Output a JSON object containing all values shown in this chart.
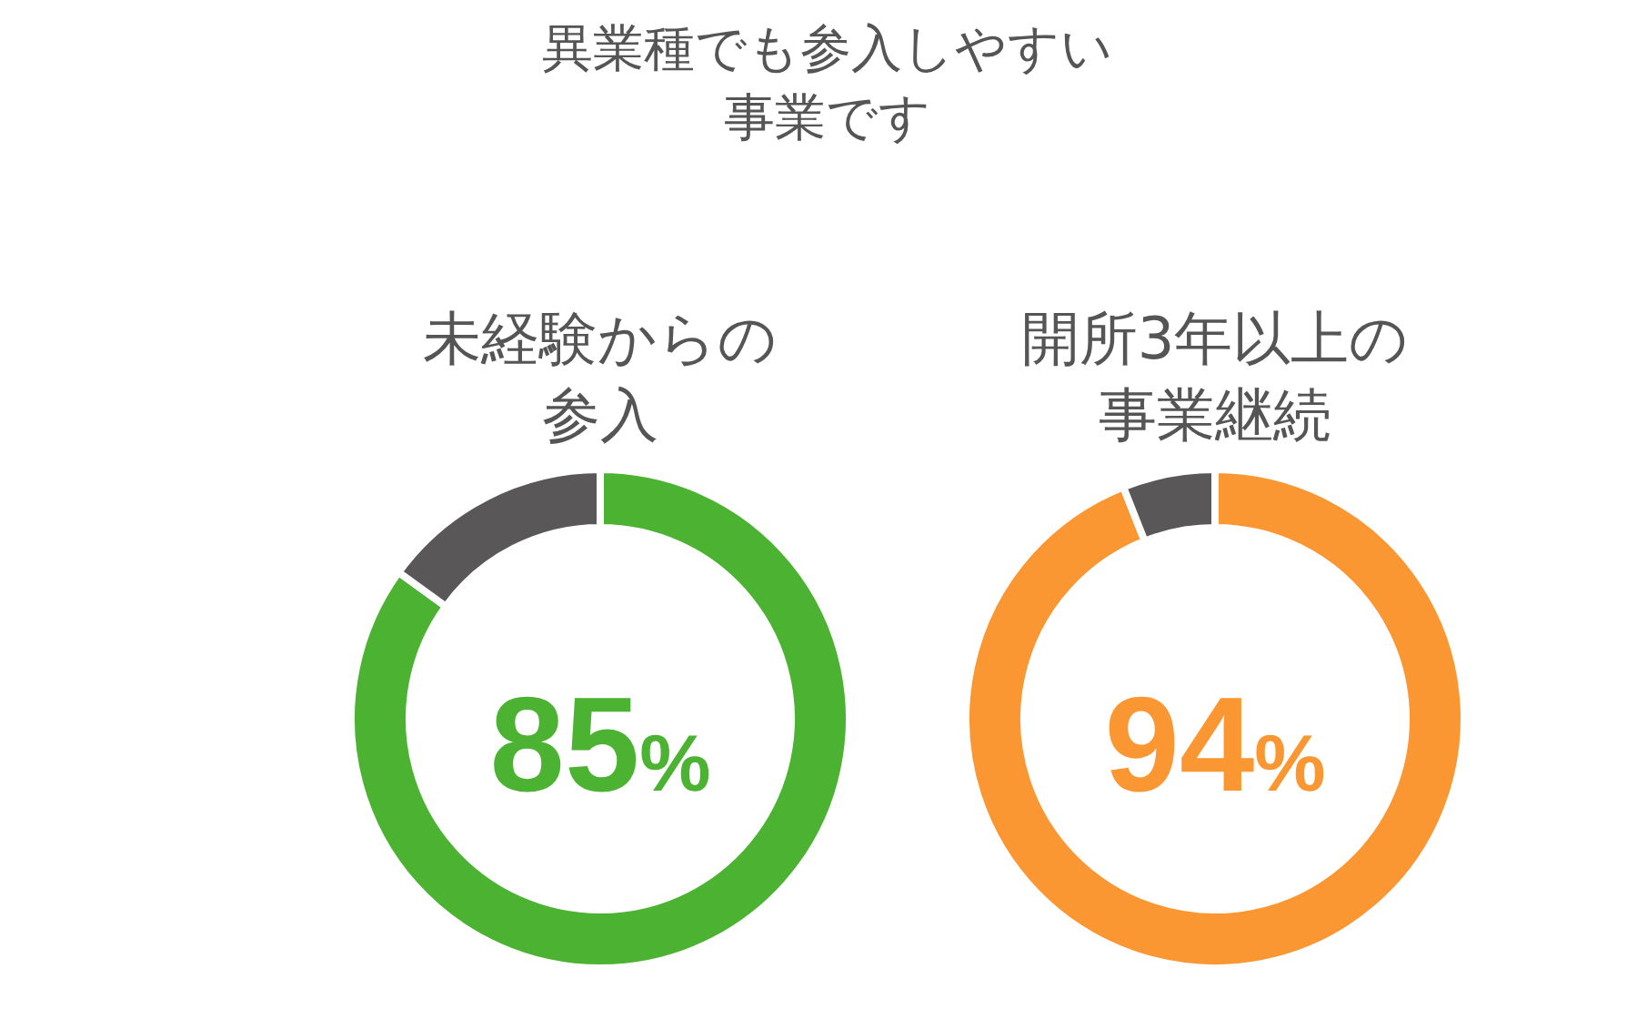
{
  "chart_data": [
    {
      "type": "donut",
      "title": "未経験からの参入",
      "annotations": [
        "異業種でも参入しやすい事業です"
      ],
      "categories": [
        null,
        null
      ],
      "values": [
        85,
        15
      ],
      "colors": [
        "#4cb232",
        "#595757"
      ],
      "value_labels": [
        "85%",
        null
      ]
    },
    {
      "type": "donut",
      "title": "開所3年以上の事業継続",
      "categories": [
        null,
        null
      ],
      "values": [
        94,
        6
      ],
      "colors": [
        "#fb9733",
        "#595757"
      ],
      "value_labels": [
        "94%",
        null
      ]
    }
  ]
}
